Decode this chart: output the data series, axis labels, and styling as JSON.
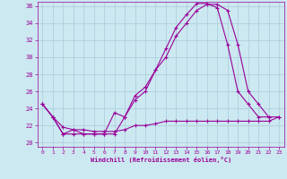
{
  "background_color": "#cce8f0",
  "grid_color": "#aaccdd",
  "line_color": "#990099",
  "xlabel": "Windchill (Refroidissement éolien,°C)",
  "xlim": [
    -0.5,
    23.5
  ],
  "ylim": [
    19.5,
    36.5
  ],
  "yticks": [
    20,
    22,
    24,
    26,
    28,
    30,
    32,
    34,
    36
  ],
  "xticks": [
    0,
    1,
    2,
    3,
    4,
    5,
    6,
    7,
    8,
    9,
    10,
    11,
    12,
    13,
    14,
    15,
    16,
    17,
    18,
    19,
    20,
    21,
    22,
    23
  ],
  "series1": [
    [
      0,
      24.5
    ],
    [
      1,
      23.0
    ],
    [
      2,
      21.0
    ],
    [
      3,
      21.0
    ],
    [
      4,
      21.0
    ],
    [
      5,
      21.0
    ],
    [
      6,
      21.0
    ],
    [
      7,
      21.0
    ],
    [
      8,
      23.0
    ],
    [
      9,
      25.0
    ],
    [
      10,
      26.0
    ],
    [
      11,
      28.5
    ],
    [
      12,
      30.0
    ],
    [
      13,
      32.5
    ],
    [
      14,
      34.0
    ],
    [
      15,
      35.5
    ],
    [
      16,
      36.2
    ],
    [
      17,
      36.2
    ],
    [
      18,
      35.5
    ],
    [
      19,
      31.5
    ],
    [
      20,
      26.0
    ],
    [
      21,
      24.5
    ],
    [
      22,
      23.0
    ],
    [
      23,
      23.0
    ]
  ],
  "series2": [
    [
      0,
      24.5
    ],
    [
      1,
      23.0
    ],
    [
      2,
      21.8
    ],
    [
      3,
      21.5
    ],
    [
      4,
      21.5
    ],
    [
      5,
      21.3
    ],
    [
      6,
      21.3
    ],
    [
      7,
      21.3
    ],
    [
      8,
      21.5
    ],
    [
      9,
      22.0
    ],
    [
      10,
      22.0
    ],
    [
      11,
      22.2
    ],
    [
      12,
      22.5
    ],
    [
      13,
      22.5
    ],
    [
      14,
      22.5
    ],
    [
      15,
      22.5
    ],
    [
      16,
      22.5
    ],
    [
      17,
      22.5
    ],
    [
      18,
      22.5
    ],
    [
      19,
      22.5
    ],
    [
      20,
      22.5
    ],
    [
      21,
      22.5
    ],
    [
      22,
      22.5
    ],
    [
      23,
      23.0
    ]
  ],
  "series3": [
    [
      0,
      24.5
    ],
    [
      1,
      23.0
    ],
    [
      2,
      21.0
    ],
    [
      3,
      21.5
    ],
    [
      4,
      21.0
    ],
    [
      5,
      21.0
    ],
    [
      6,
      21.0
    ],
    [
      7,
      23.5
    ],
    [
      8,
      23.0
    ],
    [
      9,
      25.5
    ],
    [
      10,
      26.5
    ],
    [
      11,
      28.5
    ],
    [
      12,
      31.0
    ],
    [
      13,
      33.5
    ],
    [
      14,
      35.0
    ],
    [
      15,
      36.3
    ],
    [
      16,
      36.3
    ],
    [
      17,
      35.8
    ],
    [
      18,
      31.5
    ],
    [
      19,
      26.0
    ],
    [
      20,
      24.5
    ],
    [
      21,
      23.0
    ],
    [
      22,
      23.0
    ]
  ]
}
